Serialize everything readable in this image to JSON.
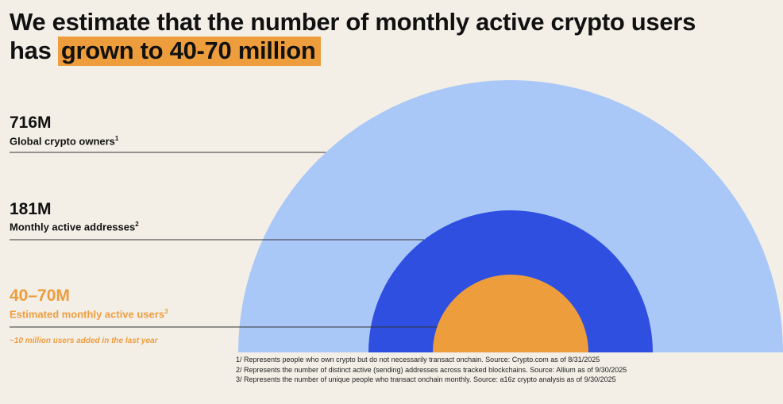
{
  "header": {
    "title_line1": "We estimate that the number of monthly active crypto users",
    "title_line2_prefix": "has",
    "title_line2_highlight": "grown to 40-70 million"
  },
  "colors": {
    "background": "#f3efe7",
    "light_blue": "#a9c7f7",
    "royal_blue": "#2e4fe0",
    "orange": "#ee9d3d",
    "text": "#111111"
  },
  "chart_data": {
    "type": "nested-semicircle",
    "rings": [
      {
        "name": "Global crypto owners",
        "value_label": "716M",
        "value": 716,
        "unit": "M",
        "footnote": "1",
        "color": "#a9c7f7"
      },
      {
        "name": "Monthly active addresses",
        "value_label": "181M",
        "value": 181,
        "unit": "M",
        "footnote": "2",
        "color": "#2e4fe0"
      },
      {
        "name": "Estimated monthly active users",
        "value_label": "40–70M",
        "value_range": [
          40,
          70
        ],
        "unit": "M",
        "footnote": "3",
        "color": "#ee9d3d"
      }
    ],
    "annotation": "~10 million users added in the last year"
  },
  "footnotes": [
    "1/ Represents people who own crypto but do not necessarily transact onchain. Source: Crypto.com as of 8/31/2025",
    "2/ Represents the number of distinct active (sending) addresses across tracked blockchains. Source: Allium as of 9/30/2025",
    "3/ Represents the number of unique people who transact onchain monthly. Source: a16z crypto analysis as of 9/30/2025"
  ]
}
